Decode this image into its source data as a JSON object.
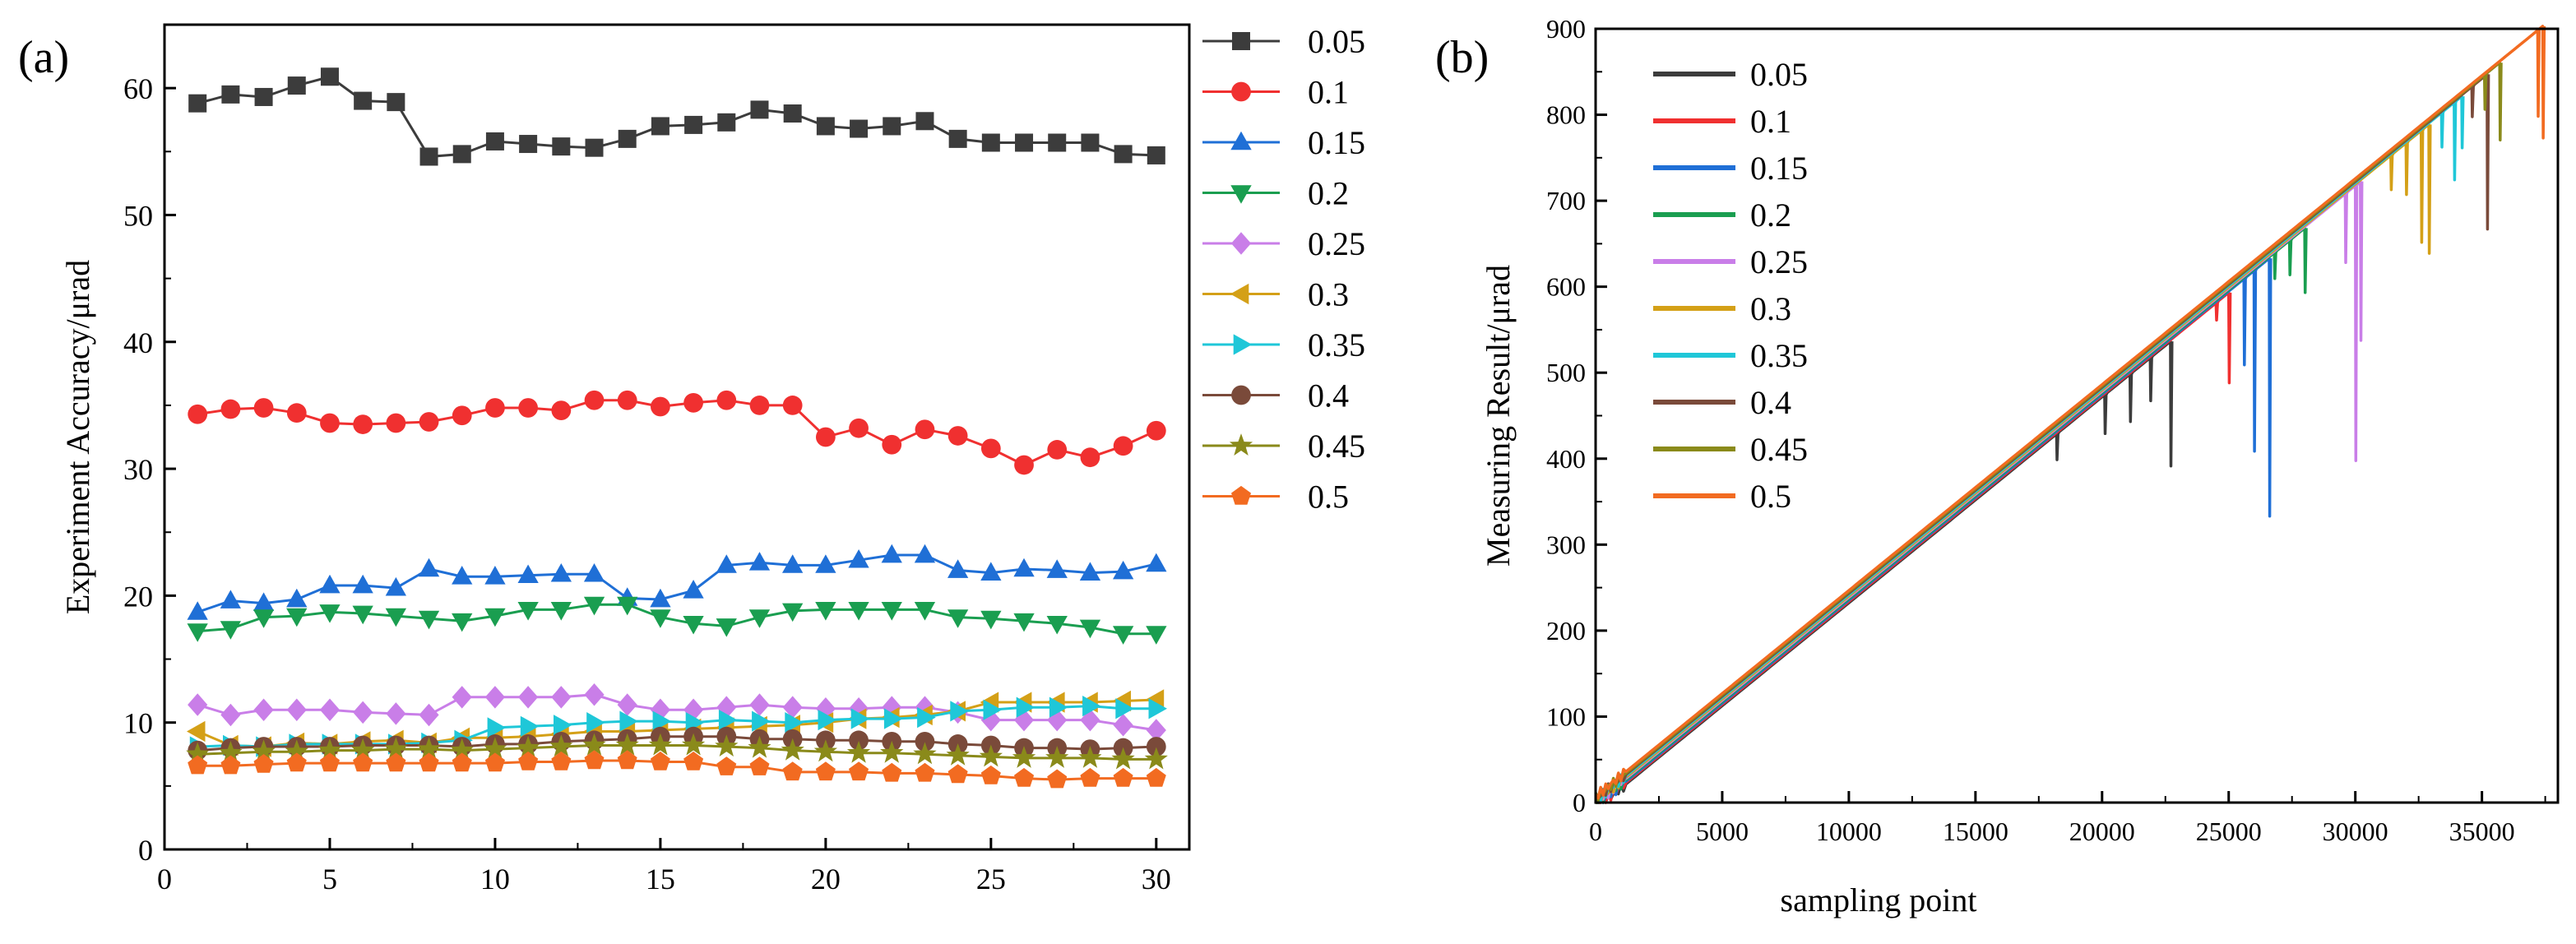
{
  "chart_data": [
    {
      "type": "line",
      "panel_label": "(a)",
      "title": "",
      "xlabel": "",
      "ylabel": "Experiment  Accuracy/μrad",
      "xlim": [
        0,
        31
      ],
      "ylim": [
        0,
        65
      ],
      "xticks": [
        0,
        5,
        10,
        15,
        20,
        25,
        30
      ],
      "yticks": [
        0,
        10,
        20,
        30,
        40,
        50,
        60
      ],
      "grid": false,
      "legend": "right-outside",
      "x": [
        1,
        2,
        3,
        4,
        5,
        6,
        7,
        8,
        9,
        10,
        11,
        12,
        13,
        14,
        15,
        16,
        17,
        18,
        19,
        20,
        21,
        22,
        23,
        24,
        25,
        26,
        27,
        28,
        29,
        30
      ],
      "series": [
        {
          "name": "0.05",
          "color": "#3c3c3c",
          "marker": "square",
          "values": [
            58.8,
            59.5,
            59.3,
            60.2,
            60.9,
            59.0,
            58.9,
            54.6,
            54.8,
            55.8,
            55.6,
            55.4,
            55.3,
            56.0,
            57.0,
            57.1,
            57.3,
            58.3,
            58.0,
            57.0,
            56.8,
            57.0,
            57.4,
            56.0,
            55.7,
            55.7,
            55.7,
            55.7,
            54.8,
            54.7
          ]
        },
        {
          "name": "0.1",
          "color": "#f03030",
          "marker": "circle",
          "values": [
            34.3,
            34.7,
            34.8,
            34.4,
            33.6,
            33.5,
            33.6,
            33.7,
            34.2,
            34.8,
            34.8,
            34.6,
            35.4,
            35.4,
            34.9,
            35.2,
            35.4,
            35.0,
            35.0,
            32.5,
            33.2,
            31.9,
            33.1,
            32.6,
            31.6,
            30.3,
            31.5,
            30.9,
            31.8,
            33.0
          ]
        },
        {
          "name": "0.15",
          "color": "#1f6fd6",
          "marker": "triangle-up",
          "values": [
            18.7,
            19.6,
            19.4,
            19.7,
            20.8,
            20.8,
            20.6,
            22.1,
            21.5,
            21.5,
            21.6,
            21.7,
            21.7,
            19.8,
            19.7,
            20.4,
            22.4,
            22.6,
            22.4,
            22.4,
            22.8,
            23.2,
            23.2,
            22.0,
            21.8,
            22.1,
            22.0,
            21.8,
            21.9,
            22.5
          ]
        },
        {
          "name": "0.2",
          "color": "#1a9e50",
          "marker": "triangle-down",
          "values": [
            17.2,
            17.4,
            18.3,
            18.4,
            18.7,
            18.6,
            18.4,
            18.2,
            18.0,
            18.4,
            18.9,
            18.9,
            19.3,
            19.3,
            18.3,
            17.8,
            17.6,
            18.3,
            18.8,
            18.9,
            18.9,
            18.9,
            18.9,
            18.3,
            18.2,
            18.0,
            17.8,
            17.5,
            17.0,
            17.0
          ]
        },
        {
          "name": "0.25",
          "color": "#c97ee8",
          "marker": "diamond",
          "values": [
            11.4,
            10.6,
            11.0,
            11.0,
            11.0,
            10.8,
            10.7,
            10.6,
            12.0,
            12.0,
            12.0,
            12.0,
            12.2,
            11.4,
            11.0,
            11.0,
            11.2,
            11.4,
            11.2,
            11.1,
            11.1,
            11.2,
            11.2,
            10.8,
            10.2,
            10.2,
            10.2,
            10.2,
            9.8,
            9.4
          ]
        },
        {
          "name": "0.3",
          "color": "#d4a017",
          "marker": "triangle-left",
          "values": [
            9.3,
            8.2,
            8.1,
            8.4,
            8.3,
            8.5,
            8.6,
            8.4,
            8.8,
            8.8,
            8.9,
            9.1,
            9.3,
            9.3,
            9.4,
            9.5,
            9.6,
            9.7,
            9.8,
            10.0,
            10.3,
            10.4,
            10.6,
            10.9,
            11.6,
            11.6,
            11.6,
            11.6,
            11.7,
            11.8
          ]
        },
        {
          "name": "0.35",
          "color": "#1fc7d8",
          "marker": "triangle-right",
          "values": [
            8.1,
            8.2,
            8.1,
            8.3,
            8.3,
            8.3,
            8.3,
            8.4,
            8.6,
            9.6,
            9.7,
            9.8,
            10.0,
            10.1,
            10.1,
            10.0,
            10.2,
            10.1,
            10.0,
            10.2,
            10.3,
            10.3,
            10.4,
            10.9,
            11.0,
            11.2,
            11.2,
            11.3,
            11.1,
            11.1
          ]
        },
        {
          "name": "0.4",
          "color": "#7a4a3a",
          "marker": "circle",
          "values": [
            7.8,
            8.0,
            8.1,
            8.1,
            8.1,
            8.2,
            8.2,
            8.2,
            8.1,
            8.3,
            8.3,
            8.5,
            8.6,
            8.7,
            8.9,
            8.9,
            8.9,
            8.7,
            8.7,
            8.6,
            8.6,
            8.5,
            8.5,
            8.3,
            8.2,
            8.0,
            8.0,
            7.9,
            8.0,
            8.1
          ]
        },
        {
          "name": "0.45",
          "color": "#8a8a1a",
          "marker": "star",
          "values": [
            7.5,
            7.6,
            7.7,
            7.7,
            7.8,
            7.8,
            7.9,
            7.9,
            7.8,
            7.9,
            8.0,
            8.1,
            8.2,
            8.2,
            8.2,
            8.2,
            8.1,
            8.0,
            7.8,
            7.7,
            7.6,
            7.6,
            7.5,
            7.4,
            7.3,
            7.2,
            7.2,
            7.2,
            7.1,
            7.1
          ]
        },
        {
          "name": "0.5",
          "color": "#f26b21",
          "marker": "pentagon",
          "values": [
            6.6,
            6.6,
            6.7,
            6.8,
            6.8,
            6.8,
            6.8,
            6.8,
            6.8,
            6.8,
            6.9,
            6.9,
            7.0,
            7.0,
            6.9,
            6.9,
            6.5,
            6.5,
            6.1,
            6.1,
            6.1,
            6.0,
            6.0,
            5.9,
            5.8,
            5.6,
            5.5,
            5.6,
            5.6,
            5.6
          ]
        }
      ]
    },
    {
      "type": "line",
      "panel_label": "(b)",
      "title": "",
      "xlabel": "sampling point",
      "ylabel": "Measuring Result/μrad",
      "xlim": [
        0,
        38000
      ],
      "ylim": [
        0,
        900
      ],
      "xticks": [
        0,
        5000,
        10000,
        15000,
        20000,
        25000,
        30000,
        35000
      ],
      "yticks": [
        0,
        100,
        200,
        300,
        400,
        500,
        600,
        700,
        800,
        900
      ],
      "grid": false,
      "legend": "top-left",
      "slope_urad_per_point": 0.02395,
      "series": [
        {
          "name": "0.05",
          "color": "#3c3c3c",
          "end_x": 22700,
          "drops": [
            [
              18200,
              30
            ],
            [
              20100,
              45
            ],
            [
              21100,
              55
            ],
            [
              21900,
              50
            ],
            [
              22700,
              145
            ]
          ]
        },
        {
          "name": "0.1",
          "color": "#f03030",
          "end_x": 25000,
          "drops": [
            [
              24500,
              20
            ],
            [
              25000,
              105
            ]
          ]
        },
        {
          "name": "0.15",
          "color": "#1f6fd6",
          "end_x": 26600,
          "drops": [
            [
              25600,
              100
            ],
            [
              26000,
              210
            ],
            [
              26600,
              300
            ]
          ]
        },
        {
          "name": "0.2",
          "color": "#1a9e50",
          "end_x": 28000,
          "drops": [
            [
              26800,
              30
            ],
            [
              27400,
              40
            ],
            [
              28000,
              75
            ]
          ]
        },
        {
          "name": "0.25",
          "color": "#c97ee8",
          "end_x": 30200,
          "drops": [
            [
              29600,
              80
            ],
            [
              30000,
              320
            ],
            [
              30200,
              185
            ]
          ]
        },
        {
          "name": "0.3",
          "color": "#d4a017",
          "end_x": 32900,
          "drops": [
            [
              31400,
              40
            ],
            [
              32000,
              60
            ],
            [
              32600,
              130
            ],
            [
              32900,
              150
            ]
          ]
        },
        {
          "name": "0.35",
          "color": "#1fc7d8",
          "end_x": 34200,
          "drops": [
            [
              33400,
              40
            ],
            [
              33900,
              90
            ],
            [
              34200,
              60
            ]
          ]
        },
        {
          "name": "0.4",
          "color": "#7a4a3a",
          "end_x": 35200,
          "drops": [
            [
              34600,
              35
            ],
            [
              35200,
              180
            ]
          ]
        },
        {
          "name": "0.45",
          "color": "#8a8a1a",
          "end_x": 35700,
          "drops": [
            [
              35100,
              40
            ],
            [
              35700,
              90
            ]
          ]
        },
        {
          "name": "0.5",
          "color": "#f26b21",
          "end_x": 37400,
          "drops": [
            [
              37200,
              100
            ],
            [
              37400,
              130
            ]
          ]
        }
      ]
    }
  ]
}
